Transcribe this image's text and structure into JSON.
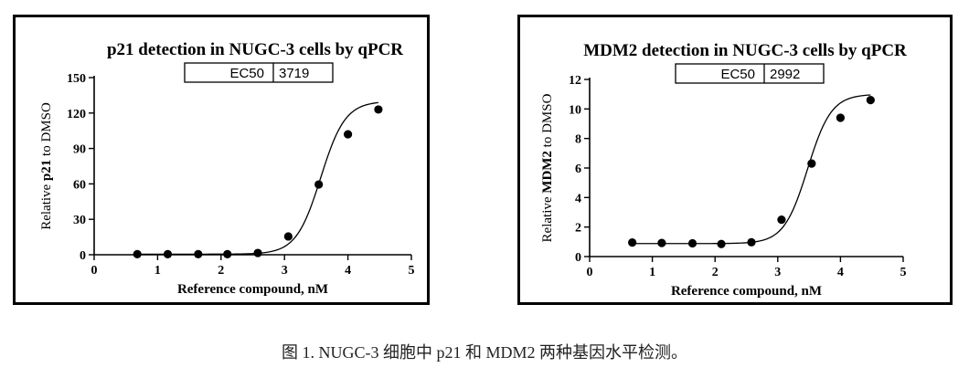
{
  "caption": "图 1. NUGC-3 细胞中 p21 和 MDM2 两种基因水平检测。",
  "chart_data": [
    {
      "type": "scatter",
      "title": "p21 detection in NUGC-3 cells by qPCR",
      "ec50_label": "EC50",
      "ec50_value": "3719",
      "xlabel": "Reference compound, nM",
      "ylabel_prefix": "Relative ",
      "ylabel_bold": "p21",
      "ylabel_suffix": " to DMSO",
      "xlim": [
        0,
        5
      ],
      "ylim": [
        0,
        150
      ],
      "xticks": [
        0,
        1,
        2,
        3,
        4,
        5
      ],
      "yticks": [
        0,
        30,
        60,
        90,
        120,
        150
      ],
      "points": [
        {
          "x": 0.68,
          "y": 0.5
        },
        {
          "x": 1.16,
          "y": 0.5
        },
        {
          "x": 1.64,
          "y": 0.5
        },
        {
          "x": 2.1,
          "y": 0.5
        },
        {
          "x": 2.58,
          "y": 1.5
        },
        {
          "x": 3.06,
          "y": 15.5
        },
        {
          "x": 3.54,
          "y": 59.5
        },
        {
          "x": 4.0,
          "y": 102
        },
        {
          "x": 4.48,
          "y": 123
        }
      ],
      "fit": {
        "bottom": 0.5,
        "top": 130,
        "logEC50": 3.571,
        "hill": 2.25
      }
    },
    {
      "type": "scatter",
      "title": "MDM2 detection in NUGC-3 cells by qPCR",
      "ec50_label": "EC50",
      "ec50_value": "2992",
      "xlabel": "Reference compound, nM",
      "ylabel_prefix": "Relative ",
      "ylabel_bold": "MDM2",
      "ylabel_suffix": " to DMSO",
      "xlim": [
        0,
        5
      ],
      "ylim": [
        0,
        12
      ],
      "xticks": [
        0,
        1,
        2,
        3,
        4,
        5
      ],
      "yticks": [
        0,
        2,
        4,
        6,
        8,
        10,
        12
      ],
      "points": [
        {
          "x": 0.68,
          "y": 0.95
        },
        {
          "x": 1.15,
          "y": 0.92
        },
        {
          "x": 1.64,
          "y": 0.9
        },
        {
          "x": 2.1,
          "y": 0.85
        },
        {
          "x": 2.58,
          "y": 0.97
        },
        {
          "x": 3.06,
          "y": 2.5
        },
        {
          "x": 3.54,
          "y": 6.3
        },
        {
          "x": 4.0,
          "y": 9.4
        },
        {
          "x": 4.48,
          "y": 10.6
        }
      ],
      "fit": {
        "bottom": 0.88,
        "top": 11.0,
        "logEC50": 3.476,
        "hill": 2.3
      }
    }
  ]
}
